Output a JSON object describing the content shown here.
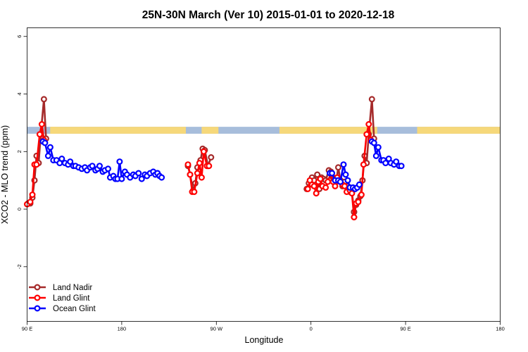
{
  "chart_data": {
    "type": "line",
    "title": "25N-30N March (Ver 10)   2015-01-01 to 2020-12-18",
    "xlabel": "Longitude",
    "ylabel": "XCO2 - MLO trend (ppm)",
    "xlim": [
      90,
      540
    ],
    "ylim": [
      -3.9,
      6.3
    ],
    "x_ticks": [
      {
        "value": 90,
        "label": "90 E"
      },
      {
        "value": 180,
        "label": "180"
      },
      {
        "value": 270,
        "label": "90 W"
      },
      {
        "value": 360,
        "label": "0"
      },
      {
        "value": 450,
        "label": "90 E"
      },
      {
        "value": 540,
        "label": "180"
      }
    ],
    "y_ticks": [
      {
        "value": -2,
        "label": "-2"
      },
      {
        "value": 0,
        "label": "0"
      },
      {
        "value": 2,
        "label": "2"
      },
      {
        "value": 4,
        "label": "4"
      },
      {
        "value": 6,
        "label": "6"
      }
    ],
    "grid": false,
    "legend_position": "bottom-left",
    "band": {
      "y_range": [
        2.62,
        2.86
      ],
      "ocean_color": "#a7bddb",
      "land_color": "#f6d87a",
      "land_segments": [
        [
          112,
          117
        ],
        [
          114,
          117.3
        ],
        [
          112,
          144
        ],
        [
          140,
          241
        ],
        [
          256,
          272
        ],
        [
          330,
          423
        ],
        [
          461,
          493
        ],
        [
          470,
          564
        ]
      ]
    },
    "series": [
      {
        "name": "Land Nadir",
        "color": "#a52a2a",
        "segments": [
          [
            [
              91,
              0.2
            ],
            [
              93,
              0.2
            ],
            [
              95,
              0.4
            ],
            [
              97,
              1.0
            ],
            [
              99,
              1.85
            ],
            [
              101,
              1.6
            ],
            [
              103,
              2.6
            ],
            [
              106,
              3.82
            ],
            [
              108,
              2.45
            ]
          ],
          [
            [
              243,
              1.5
            ],
            [
              245,
              1.2
            ],
            [
              248,
              0.65
            ],
            [
              250,
              0.9
            ],
            [
              252,
              1.45
            ],
            [
              255,
              1.7
            ],
            [
              257,
              2.1
            ],
            [
              259,
              2.05
            ],
            [
              262,
              1.5
            ],
            [
              265,
              1.8
            ]
          ],
          [
            [
              356,
              0.7
            ],
            [
              358,
              0.9
            ],
            [
              361,
              1.1
            ],
            [
              363,
              1.0
            ],
            [
              366,
              1.2
            ],
            [
              368,
              0.7
            ],
            [
              370,
              1.1
            ],
            [
              372,
              1.05
            ],
            [
              374,
              1.0
            ],
            [
              377,
              1.35
            ],
            [
              379,
              1.3
            ],
            [
              381,
              1.1
            ],
            [
              384,
              0.95
            ],
            [
              386,
              1.45
            ],
            [
              388,
              1.0
            ],
            [
              390,
              0.8
            ],
            [
              392,
              0.95
            ],
            [
              395,
              0.8
            ],
            [
              397,
              0.6
            ],
            [
              399,
              0.6
            ],
            [
              401,
              -0.1
            ]
          ],
          [
            [
              401,
              -0.1
            ],
            [
              403,
              0.15
            ],
            [
              405,
              0.3
            ],
            [
              407,
              0.45
            ],
            [
              409,
              1.0
            ],
            [
              411,
              1.85
            ],
            [
              413,
              1.6
            ],
            [
              415,
              2.6
            ],
            [
              418,
              3.82
            ],
            [
              420,
              2.45
            ]
          ]
        ]
      },
      {
        "name": "Land Glint",
        "color": "#ff0000",
        "segments": [
          [
            [
              90,
              0.17
            ],
            [
              93,
              0.25
            ],
            [
              95,
              0.5
            ],
            [
              97,
              1.55
            ],
            [
              99,
              1.55
            ],
            [
              102,
              2.6
            ],
            [
              104,
              2.95
            ],
            [
              106,
              2.4
            ]
          ],
          [
            [
              243,
              1.55
            ],
            [
              245,
              1.2
            ],
            [
              247,
              0.6
            ],
            [
              249,
              0.6
            ],
            [
              252,
              1.25
            ],
            [
              254,
              1.6
            ],
            [
              256,
              1.1
            ],
            [
              258,
              2.0
            ],
            [
              261,
              1.5
            ],
            [
              263,
              1.5
            ]
          ],
          [
            [
              357,
              0.7
            ],
            [
              359,
              1.0
            ],
            [
              361,
              0.85
            ],
            [
              363,
              0.8
            ],
            [
              365,
              0.55
            ],
            [
              367,
              0.95
            ],
            [
              369,
              1.05
            ],
            [
              371,
              0.8
            ],
            [
              374,
              0.75
            ],
            [
              376,
              0.95
            ],
            [
              379,
              1.25
            ],
            [
              381,
              0.95
            ],
            [
              383,
              0.8
            ],
            [
              385,
              1.1
            ],
            [
              388,
              0.95
            ],
            [
              390,
              0.85
            ],
            [
              392,
              0.8
            ],
            [
              394,
              0.6
            ],
            [
              397,
              0.65
            ],
            [
              399,
              0.55
            ],
            [
              401,
              -0.28
            ]
          ],
          [
            [
              401,
              -0.28
            ],
            [
              403,
              0.2
            ],
            [
              405,
              0.25
            ],
            [
              408,
              0.5
            ],
            [
              410,
              1.55
            ],
            [
              413,
              2.6
            ],
            [
              415,
              2.95
            ],
            [
              417,
              2.4
            ]
          ]
        ]
      },
      {
        "name": "Ocean Glint",
        "color": "#0000ff",
        "segments": [
          [
            [
              105,
              2.35
            ],
            [
              107,
              2.3
            ],
            [
              110,
              1.85
            ],
            [
              112,
              2.15
            ],
            [
              115,
              1.7
            ],
            [
              118,
              1.7
            ],
            [
              121,
              1.6
            ],
            [
              123,
              1.75
            ],
            [
              126,
              1.6
            ],
            [
              129,
              1.55
            ],
            [
              131,
              1.65
            ],
            [
              134,
              1.5
            ],
            [
              136,
              1.5
            ],
            [
              139,
              1.45
            ],
            [
              142,
              1.4
            ],
            [
              145,
              1.45
            ],
            [
              147,
              1.35
            ],
            [
              150,
              1.45
            ],
            [
              152,
              1.5
            ],
            [
              155,
              1.35
            ],
            [
              157,
              1.4
            ],
            [
              159,
              1.5
            ],
            [
              162,
              1.3
            ],
            [
              164,
              1.35
            ],
            [
              167,
              1.4
            ],
            [
              169,
              1.1
            ],
            [
              172,
              1.15
            ],
            [
              174,
              1.05
            ],
            [
              176,
              1.05
            ],
            [
              178,
              1.65
            ],
            [
              180,
              1.05
            ],
            [
              183,
              1.3
            ],
            [
              185,
              1.2
            ],
            [
              188,
              1.1
            ],
            [
              191,
              1.2
            ],
            [
              193,
              1.15
            ],
            [
              196,
              1.25
            ],
            [
              199,
              1.05
            ],
            [
              202,
              1.2
            ],
            [
              204,
              1.15
            ],
            [
              207,
              1.25
            ],
            [
              210,
              1.3
            ],
            [
              212,
              1.2
            ],
            [
              214,
              1.25
            ]
          ],
          [
            [
              214,
              1.25
            ],
            [
              216,
              1.15
            ],
            [
              218,
              1.1
            ]
          ],
          [
            [
              378,
              1.25
            ],
            [
              380,
              1.25
            ],
            [
              383,
              1.0
            ],
            [
              386,
              1.0
            ],
            [
              388,
              0.95
            ],
            [
              391,
              1.55
            ],
            [
              393,
              1.2
            ],
            [
              395,
              1.0
            ],
            [
              397,
              0.75
            ],
            [
              400,
              0.75
            ],
            [
              402,
              0.7
            ],
            [
              404,
              0.75
            ],
            [
              406,
              0.85
            ]
          ],
          [
            [
              418,
              2.35
            ],
            [
              420,
              2.3
            ],
            [
              422,
              1.85
            ],
            [
              424,
              2.15
            ],
            [
              427,
              1.7
            ],
            [
              429,
              1.7
            ],
            [
              431,
              1.6
            ],
            [
              434,
              1.75
            ],
            [
              436,
              1.6
            ],
            [
              439,
              1.55
            ],
            [
              441,
              1.65
            ],
            [
              444,
              1.5
            ],
            [
              446,
              1.5
            ]
          ]
        ]
      }
    ]
  }
}
